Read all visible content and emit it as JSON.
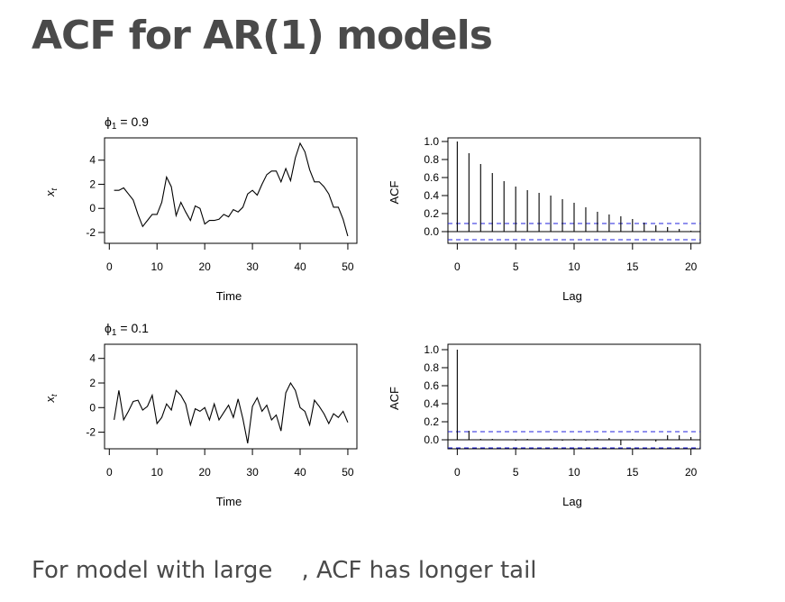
{
  "slide": {
    "title": "ACF for AR(1) models",
    "caption_before": "For model with large",
    "caption_after": ", ACF has longer tail"
  },
  "chart_data": [
    {
      "type": "line",
      "panel_label": "ϕ",
      "panel_label_sub": "1",
      "panel_label_value": "= 0.9",
      "xlabel": "Time",
      "ylabel": "x",
      "ylabel_sub": "t",
      "xlim": [
        0,
        50
      ],
      "ylim": [
        -2.5,
        5.5
      ],
      "xticks": [
        0,
        10,
        20,
        30,
        40,
        50
      ],
      "yticks": [
        -2,
        0,
        2,
        4
      ],
      "x": [
        1,
        2,
        3,
        4,
        5,
        6,
        7,
        8,
        9,
        10,
        11,
        12,
        13,
        14,
        15,
        16,
        17,
        18,
        19,
        20,
        21,
        22,
        23,
        24,
        25,
        26,
        27,
        28,
        29,
        30,
        31,
        32,
        33,
        34,
        35,
        36,
        37,
        38,
        39,
        40,
        41,
        42,
        43,
        44,
        45,
        46,
        47,
        48,
        49,
        50
      ],
      "y": [
        1.5,
        1.5,
        1.7,
        1.2,
        0.7,
        -0.5,
        -1.5,
        -1.0,
        -0.5,
        -0.5,
        0.5,
        2.6,
        1.8,
        -0.6,
        0.5,
        -0.3,
        -1.0,
        0.2,
        0.0,
        -1.3,
        -1.0,
        -1.0,
        -0.9,
        -0.5,
        -0.7,
        -0.1,
        -0.3,
        0.1,
        1.2,
        1.5,
        1.1,
        2.0,
        2.8,
        3.1,
        3.1,
        2.2,
        3.3,
        2.3,
        4.2,
        5.4,
        4.7,
        3.2,
        2.2,
        2.2,
        1.8,
        1.2,
        0.1,
        0.1,
        -0.9,
        -2.3
      ]
    },
    {
      "type": "bar",
      "xlabel": "Lag",
      "ylabel": "ACF",
      "xlim": [
        0,
        20
      ],
      "ylim": [
        -0.1,
        1.0
      ],
      "xticks": [
        0,
        5,
        10,
        15,
        20
      ],
      "yticks": [
        0.0,
        0.2,
        0.4,
        0.6,
        0.8,
        1.0
      ],
      "ci": 0.09,
      "lags": [
        0,
        1,
        2,
        3,
        4,
        5,
        6,
        7,
        8,
        9,
        10,
        11,
        12,
        13,
        14,
        15,
        16,
        17,
        18,
        19,
        20
      ],
      "values": [
        1.0,
        0.87,
        0.75,
        0.65,
        0.56,
        0.5,
        0.46,
        0.43,
        0.4,
        0.36,
        0.32,
        0.27,
        0.22,
        0.19,
        0.17,
        0.14,
        0.1,
        0.07,
        0.05,
        0.03,
        0.01
      ]
    },
    {
      "type": "line",
      "panel_label": "ϕ",
      "panel_label_sub": "1",
      "panel_label_value": "= 0.1",
      "xlabel": "Time",
      "ylabel": "x",
      "ylabel_sub": "t",
      "xlim": [
        0,
        50
      ],
      "ylim": [
        -3,
        5.5
      ],
      "xticks": [
        0,
        10,
        20,
        30,
        40,
        50
      ],
      "yticks": [
        -2,
        0,
        2,
        4
      ],
      "x": [
        1,
        2,
        3,
        4,
        5,
        6,
        7,
        8,
        9,
        10,
        11,
        12,
        13,
        14,
        15,
        16,
        17,
        18,
        19,
        20,
        21,
        22,
        23,
        24,
        25,
        26,
        27,
        28,
        29,
        30,
        31,
        32,
        33,
        34,
        35,
        36,
        37,
        38,
        39,
        40,
        41,
        42,
        43,
        44,
        45,
        46,
        47,
        48,
        49,
        50
      ],
      "y": [
        -1.0,
        1.4,
        -1.0,
        -0.3,
        0.5,
        0.6,
        -0.2,
        0.1,
        1.0,
        -1.3,
        -0.8,
        0.3,
        -0.2,
        1.4,
        1.0,
        0.3,
        -1.4,
        -0.1,
        -0.3,
        0.0,
        -1.0,
        0.3,
        -1.0,
        -0.4,
        0.2,
        -0.8,
        0.7,
        -0.9,
        -2.9,
        0.1,
        0.8,
        -0.3,
        0.2,
        -1.0,
        -0.6,
        -1.9,
        1.2,
        2.0,
        1.4,
        0.0,
        -0.3,
        -1.4,
        0.6,
        0.1,
        -0.5,
        -1.3,
        -0.5,
        -0.8,
        -0.3,
        -1.2
      ]
    },
    {
      "type": "bar",
      "xlabel": "Lag",
      "ylabel": "ACF",
      "xlim": [
        0,
        20
      ],
      "ylim": [
        -0.1,
        1.0
      ],
      "xticks": [
        0,
        5,
        10,
        15,
        20
      ],
      "yticks": [
        0.0,
        0.2,
        0.4,
        0.6,
        0.8,
        1.0
      ],
      "ci": 0.09,
      "lags": [
        0,
        1,
        2,
        3,
        4,
        5,
        6,
        7,
        8,
        9,
        10,
        11,
        12,
        13,
        14,
        15,
        16,
        17,
        18,
        19,
        20
      ],
      "values": [
        1.0,
        0.1,
        0.01,
        0.01,
        0.0,
        -0.01,
        0.01,
        0.0,
        0.01,
        -0.01,
        0.01,
        -0.01,
        0.01,
        0.02,
        -0.06,
        0.01,
        0.0,
        -0.02,
        0.05,
        0.05,
        0.03
      ]
    }
  ]
}
